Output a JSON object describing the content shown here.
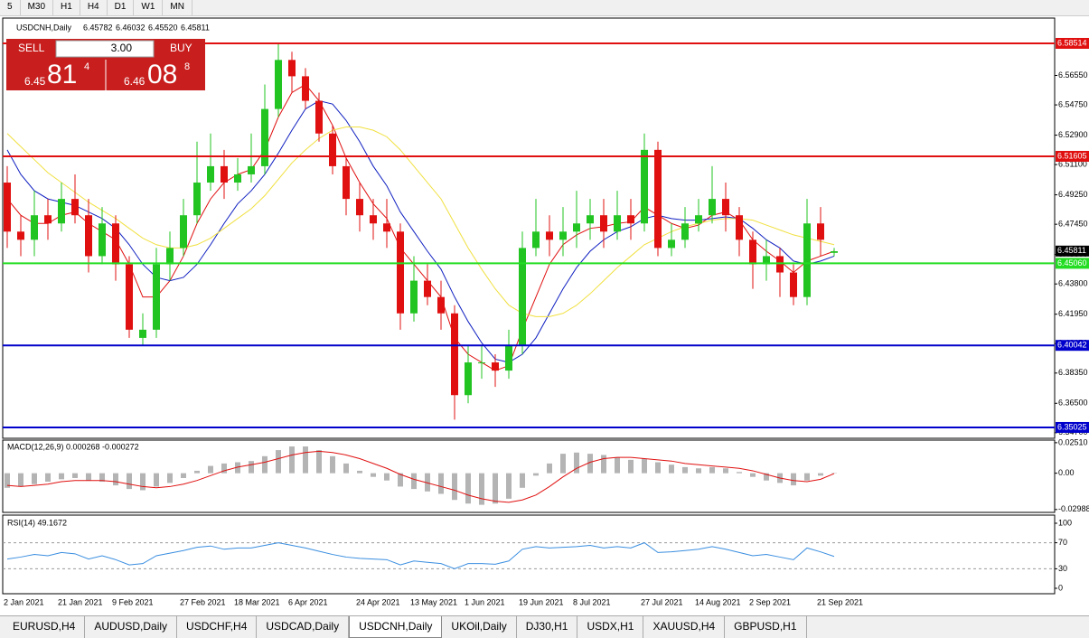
{
  "toolbar": {
    "timeframes": [
      "5",
      "M30",
      "H1",
      "H4",
      "D1",
      "W1",
      "MN"
    ]
  },
  "trade_panel": {
    "sell": "SELL",
    "buy": "BUY",
    "volume": "3.00",
    "bid_big": "6.45",
    "bid_pips": "81",
    "bid_frac": "4",
    "ask_big": "6.46",
    "ask_pips": "08",
    "ask_frac": "8"
  },
  "tabs": [
    "EURUSD,H4",
    "AUDUSD,Daily",
    "USDCHF,H4",
    "USDCAD,Daily",
    "USDCNH,Daily",
    "UKOil,Daily",
    "DJ30,H1",
    "USDX,H1",
    "XAUUSD,H4",
    "GBPUSD,H1"
  ],
  "active_tab": 4,
  "chart_data": [
    {
      "type": "candlestick",
      "title": "USDCNH,Daily",
      "ohlc_info": [
        "6.45782",
        "6.46032",
        "6.45520",
        "6.45811"
      ],
      "up_color": "#22c422",
      "down_color": "#e01010",
      "categories": [
        "2 Jan 2021",
        null,
        null,
        null,
        "21 Jan 2021",
        null,
        null,
        null,
        "9 Feb 2021",
        null,
        null,
        null,
        null,
        "27 Feb 2021",
        null,
        null,
        null,
        "18 Mar 2021",
        null,
        null,
        null,
        "6 Apr 2021",
        null,
        null,
        null,
        null,
        "24 Apr 2021",
        null,
        null,
        null,
        "13 May 2021",
        null,
        null,
        null,
        "1 Jun 2021",
        null,
        null,
        null,
        "19 Jun 2021",
        null,
        null,
        null,
        "8 Jul 2021",
        null,
        null,
        null,
        null,
        "27 Jul 2021",
        null,
        null,
        null,
        "14 Aug 2021",
        null,
        null,
        null,
        "2 Sep 2021",
        null,
        null,
        null,
        null,
        "21 Sep 2021",
        null
      ],
      "open": [
        6.5,
        6.47,
        6.465,
        6.48,
        6.475,
        6.49,
        6.48,
        6.455,
        6.475,
        6.45,
        6.405,
        6.41,
        6.45,
        6.46,
        6.48,
        6.5,
        6.51,
        6.5,
        6.505,
        6.51,
        6.545,
        6.575,
        6.565,
        6.55,
        6.53,
        6.51,
        6.49,
        6.48,
        6.475,
        6.47,
        6.42,
        6.44,
        6.43,
        6.42,
        6.37,
        6.39,
        6.39,
        6.385,
        6.4,
        6.46,
        6.47,
        6.465,
        6.47,
        6.475,
        6.48,
        6.47,
        6.48,
        6.475,
        6.52,
        6.46,
        6.465,
        6.475,
        6.48,
        6.49,
        6.48,
        6.465,
        6.45,
        6.455,
        6.445,
        6.43,
        6.475,
        6.457
      ],
      "high": [
        6.51,
        6.48,
        6.495,
        6.49,
        6.5,
        6.505,
        6.49,
        6.485,
        6.48,
        6.455,
        6.42,
        6.46,
        6.47,
        6.49,
        6.525,
        6.53,
        6.52,
        6.515,
        6.53,
        6.56,
        6.585,
        6.58,
        6.57,
        6.555,
        6.535,
        6.515,
        6.5,
        6.49,
        6.49,
        6.475,
        6.455,
        6.45,
        6.44,
        6.425,
        6.4,
        6.4,
        6.395,
        6.41,
        6.47,
        6.49,
        6.48,
        6.485,
        6.495,
        6.49,
        6.49,
        6.495,
        6.49,
        6.53,
        6.525,
        6.475,
        6.485,
        6.49,
        6.51,
        6.5,
        6.485,
        6.47,
        6.465,
        6.46,
        6.45,
        6.49,
        6.485,
        6.46
      ],
      "low": [
        6.46,
        6.455,
        6.455,
        6.465,
        6.47,
        6.475,
        6.445,
        6.45,
        6.44,
        6.405,
        6.4,
        6.405,
        6.44,
        6.455,
        6.475,
        6.495,
        6.49,
        6.495,
        6.5,
        6.505,
        6.54,
        6.555,
        6.545,
        6.525,
        6.505,
        6.48,
        6.47,
        6.465,
        6.46,
        6.41,
        6.415,
        6.425,
        6.41,
        6.355,
        6.365,
        6.38,
        6.375,
        6.38,
        6.395,
        6.455,
        6.455,
        6.455,
        6.46,
        6.465,
        6.46,
        6.465,
        6.465,
        6.47,
        6.455,
        6.455,
        6.46,
        6.47,
        6.475,
        6.47,
        6.455,
        6.435,
        6.44,
        6.43,
        6.425,
        6.425,
        6.455,
        6.455
      ],
      "close": [
        6.47,
        6.465,
        6.48,
        6.475,
        6.49,
        6.48,
        6.455,
        6.475,
        6.45,
        6.41,
        6.41,
        6.45,
        6.46,
        6.48,
        6.5,
        6.51,
        6.5,
        6.505,
        6.51,
        6.545,
        6.575,
        6.565,
        6.55,
        6.53,
        6.51,
        6.49,
        6.48,
        6.475,
        6.47,
        6.42,
        6.44,
        6.43,
        6.42,
        6.37,
        6.39,
        6.39,
        6.385,
        6.4,
        6.46,
        6.47,
        6.465,
        6.47,
        6.475,
        6.48,
        6.47,
        6.48,
        6.475,
        6.52,
        6.46,
        6.465,
        6.475,
        6.48,
        6.49,
        6.48,
        6.465,
        6.45,
        6.455,
        6.445,
        6.43,
        6.475,
        6.465,
        6.458
      ],
      "series": [
        {
          "color": "#e01010",
          "values": [
            6.49,
            6.48,
            6.475,
            6.475,
            6.48,
            6.482,
            6.475,
            6.47,
            6.465,
            6.45,
            6.43,
            6.43,
            6.44,
            6.455,
            6.475,
            6.49,
            6.5,
            6.505,
            6.508,
            6.52,
            6.54,
            6.555,
            6.56,
            6.55,
            6.535,
            6.515,
            6.5,
            6.487,
            6.478,
            6.46,
            6.45,
            6.44,
            6.43,
            6.405,
            6.395,
            6.39,
            6.385,
            6.388,
            6.41,
            6.43,
            6.45,
            6.462,
            6.468,
            6.472,
            6.473,
            6.475,
            6.476,
            6.485,
            6.48,
            6.475,
            6.472,
            6.474,
            6.48,
            6.482,
            6.477,
            6.465,
            6.458,
            6.452,
            6.445,
            6.452,
            6.455,
            6.458
          ]
        },
        {
          "color": "#1020c0",
          "values": [
            6.52,
            6.505,
            6.495,
            6.49,
            6.488,
            6.486,
            6.482,
            6.478,
            6.472,
            6.462,
            6.45,
            6.442,
            6.44,
            6.442,
            6.45,
            6.462,
            6.475,
            6.487,
            6.495,
            6.505,
            6.518,
            6.532,
            6.545,
            6.55,
            6.548,
            6.538,
            6.525,
            6.51,
            6.498,
            6.482,
            6.47,
            6.458,
            6.447,
            6.43,
            6.415,
            6.402,
            6.392,
            6.39,
            6.395,
            6.405,
            6.42,
            6.435,
            6.448,
            6.458,
            6.465,
            6.47,
            6.473,
            6.478,
            6.48,
            6.478,
            6.477,
            6.477,
            6.478,
            6.479,
            6.478,
            6.472,
            6.465,
            6.46,
            6.452,
            6.45,
            6.452,
            6.455
          ]
        },
        {
          "color": "#f0e040",
          "values": [
            6.53,
            6.522,
            6.514,
            6.506,
            6.5,
            6.494,
            6.488,
            6.483,
            6.478,
            6.472,
            6.466,
            6.462,
            6.46,
            6.46,
            6.462,
            6.466,
            6.472,
            6.478,
            6.484,
            6.492,
            6.502,
            6.512,
            6.52,
            6.527,
            6.532,
            6.534,
            6.534,
            6.532,
            6.528,
            6.52,
            6.51,
            6.5,
            6.49,
            6.475,
            6.46,
            6.447,
            6.435,
            6.425,
            6.42,
            6.418,
            6.418,
            6.42,
            6.425,
            6.432,
            6.44,
            6.448,
            6.455,
            6.462,
            6.466,
            6.47,
            6.473,
            6.475,
            6.477,
            6.478,
            6.478,
            6.477,
            6.474,
            6.471,
            6.468,
            6.466,
            6.464,
            6.462
          ]
        }
      ],
      "hlines": [
        {
          "value": 6.58514,
          "color": "#e01010"
        },
        {
          "value": 6.51605,
          "color": "#e01010"
        },
        {
          "value": 6.4506,
          "label": "6.45060",
          "color": "#22dd22"
        },
        {
          "value": 6.40042,
          "color": "#0000cc"
        },
        {
          "value": 6.35025,
          "color": "#0000cc"
        }
      ],
      "current_price": 6.45811,
      "ylim": [
        6.3436,
        6.6006
      ],
      "yticks": [
        {
          "value": 6.5655,
          "label": "6.56550"
        },
        {
          "value": 6.5475,
          "label": "6.54750"
        },
        {
          "value": 6.529,
          "label": "6.52900"
        },
        {
          "value": 6.511,
          "label": "6.51100"
        },
        {
          "value": 6.4925,
          "label": "6.49250"
        },
        {
          "value": 6.4745,
          "label": "6.47450"
        },
        {
          "value": 6.456,
          "label": "6.45600"
        },
        {
          "value": 6.438,
          "label": "6.43800"
        },
        {
          "value": 6.4195,
          "label": "6.41950"
        },
        {
          "value": 6.4015,
          "label": "6.40150"
        },
        {
          "value": 6.3835,
          "label": "6.38350"
        },
        {
          "value": 6.365,
          "label": "6.36500"
        },
        {
          "value": 6.347,
          "label": "6.34700"
        }
      ]
    },
    {
      "type": "macd",
      "title": "MACD(12,26,9) 0.000268 -0.000272",
      "hist_color": "#b4b4b4",
      "signal_color": "#e01010",
      "hist": [
        -0.012,
        -0.011,
        -0.009,
        -0.007,
        -0.005,
        -0.004,
        -0.006,
        -0.007,
        -0.01,
        -0.013,
        -0.014,
        -0.011,
        -0.008,
        -0.004,
        0.002,
        0.006,
        0.008,
        0.009,
        0.01,
        0.014,
        0.019,
        0.022,
        0.022,
        0.019,
        0.014,
        0.008,
        0.002,
        -0.003,
        -0.006,
        -0.011,
        -0.013,
        -0.015,
        -0.017,
        -0.022,
        -0.025,
        -0.026,
        -0.025,
        -0.021,
        -0.012,
        -0.002,
        0.008,
        0.016,
        0.017,
        0.016,
        0.015,
        0.013,
        0.011,
        0.012,
        0.009,
        0.007,
        0.005,
        0.004,
        0.005,
        0.004,
        0.001,
        -0.003,
        -0.006,
        -0.008,
        -0.01,
        -0.006,
        -0.002,
        0.0003
      ],
      "signal": [
        -0.01,
        -0.011,
        -0.01,
        -0.009,
        -0.007,
        -0.006,
        -0.006,
        -0.006,
        -0.007,
        -0.009,
        -0.011,
        -0.012,
        -0.011,
        -0.009,
        -0.006,
        -0.002,
        0.002,
        0.005,
        0.007,
        0.009,
        0.012,
        0.015,
        0.017,
        0.018,
        0.017,
        0.015,
        0.012,
        0.008,
        0.004,
        -0.001,
        -0.005,
        -0.008,
        -0.011,
        -0.014,
        -0.018,
        -0.021,
        -0.023,
        -0.024,
        -0.022,
        -0.018,
        -0.011,
        -0.003,
        0.004,
        0.009,
        0.012,
        0.013,
        0.013,
        0.012,
        0.011,
        0.01,
        0.008,
        0.007,
        0.006,
        0.005,
        0.004,
        0.002,
        -0.001,
        -0.004,
        -0.006,
        -0.007,
        -0.005,
        -0.0003
      ],
      "ylim": [
        -0.0315,
        0.0265
      ],
      "yticks": [
        {
          "value": 0.0251,
          "label": "0.02510"
        },
        {
          "value": 0,
          "label": "0.00"
        },
        {
          "value": -0.02988,
          "label": "-0.02988"
        }
      ]
    },
    {
      "type": "rsi",
      "title": "RSI(14) 49.1672",
      "color": "#3a8ee0",
      "values": [
        45,
        48,
        52,
        50,
        55,
        53,
        45,
        50,
        44,
        36,
        38,
        50,
        54,
        58,
        63,
        65,
        60,
        62,
        62,
        66,
        70,
        66,
        62,
        57,
        52,
        48,
        46,
        45,
        44,
        36,
        42,
        40,
        38,
        30,
        38,
        38,
        37,
        42,
        60,
        64,
        62,
        63,
        64,
        66,
        62,
        64,
        62,
        70,
        55,
        56,
        58,
        60,
        64,
        60,
        55,
        50,
        52,
        48,
        44,
        62,
        56,
        49
      ],
      "levels": [
        70,
        30
      ],
      "ylim": [
        0,
        100
      ],
      "yticks": [
        100,
        70,
        30,
        0
      ]
    }
  ]
}
